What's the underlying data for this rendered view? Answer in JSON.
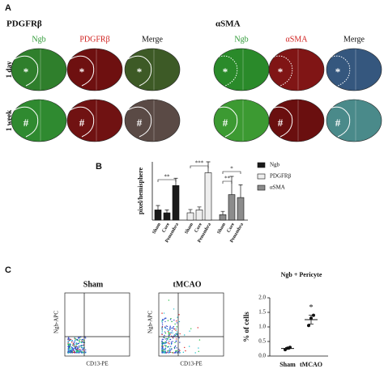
{
  "panel_a": {
    "label": "A",
    "groups": [
      {
        "title": "PDGFRβ",
        "columns": [
          "Ngb",
          "PDGFRβ",
          "Merge"
        ]
      },
      {
        "title": "αSMA",
        "columns": [
          "Ngb",
          "αSMA",
          "Merge"
        ]
      }
    ],
    "rows": [
      "1 day",
      "1 week"
    ],
    "markers": [
      "*",
      "#"
    ]
  },
  "panel_b": {
    "label": "B"
  },
  "panel_c": {
    "label": "C",
    "flow": [
      {
        "title": "Sham"
      },
      {
        "title": "tMCAO"
      }
    ],
    "flow_ylabel": "Ngb-APC",
    "flow_xlabel": "CD13-PE"
  },
  "chart_data": [
    {
      "type": "bar",
      "ylabel": "pixel/hemisphere",
      "categories": [
        "Sham",
        "Core",
        "Penumbra",
        "Sham",
        "Core",
        "Penumbra",
        "Sham",
        "Core",
        "Penumbra"
      ],
      "series": [
        {
          "name": "Ngb",
          "color": "#1a1a1a",
          "values": [
            2.8,
            2.0,
            9.5,
            null,
            null,
            null,
            null,
            null,
            null
          ],
          "errors": [
            1.2,
            0.8,
            2.0,
            null,
            null,
            null,
            null,
            null,
            null
          ]
        },
        {
          "name": "PDGFRβ",
          "color": "#eeeeee",
          "values": [
            null,
            null,
            null,
            2.0,
            2.8,
            13,
            null,
            null,
            null
          ],
          "errors": [
            null,
            null,
            null,
            0.9,
            0.8,
            3.0,
            null,
            null,
            null
          ]
        },
        {
          "name": "αSMA",
          "color": "#8c8c8c",
          "values": [
            null,
            null,
            null,
            null,
            null,
            null,
            1.5,
            7.0,
            6.2
          ],
          "errors": [
            null,
            null,
            null,
            null,
            null,
            null,
            0.9,
            5.0,
            3.5
          ]
        }
      ],
      "ylim": [
        0,
        16
      ],
      "annotations": [
        "**",
        "***",
        "*",
        "**"
      ]
    },
    {
      "type": "scatter",
      "title": "Ngb + Pericyte",
      "ylabel": "% of cells",
      "categories": [
        "Sham",
        "tMCAO"
      ],
      "points": [
        [
          0.22,
          0.27,
          0.3
        ],
        [
          1.05,
          1.3,
          1.4
        ]
      ],
      "means": [
        0.26,
        1.25
      ],
      "errors": [
        0.03,
        0.15
      ],
      "ylim": [
        0,
        2
      ],
      "yticks": [
        {
          "value": 0,
          "label": "0.0"
        },
        0.5,
        {
          "value": 1,
          "label": "1.0"
        },
        1.5,
        {
          "value": 2,
          "label": "2.0"
        }
      ],
      "annotations": [
        "*"
      ]
    }
  ]
}
